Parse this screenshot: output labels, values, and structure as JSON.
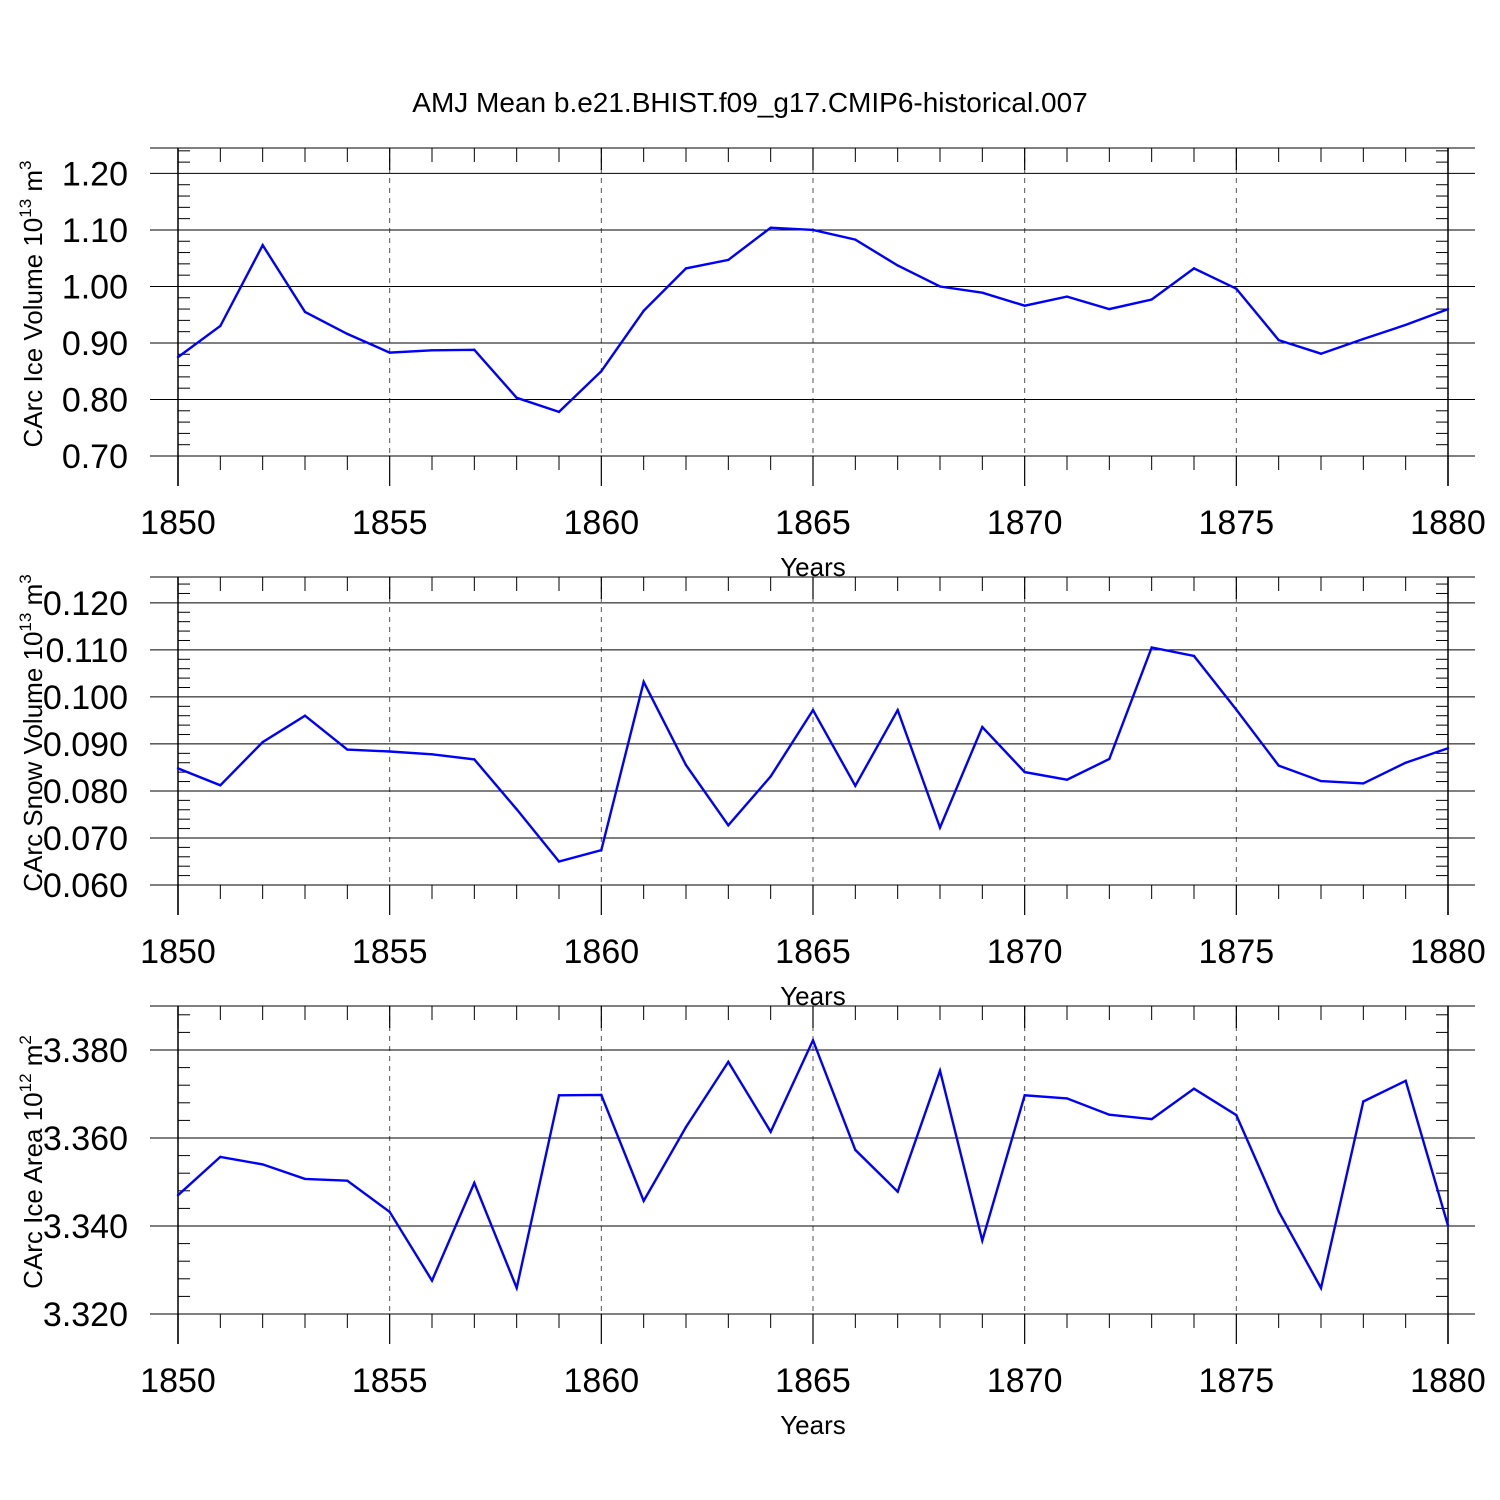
{
  "figure_title": "AMJ Mean b.e21.BHIST.f09_g17.CMIP6-historical.007",
  "colors": {
    "line": "#0000ff",
    "axis": "#000000",
    "grid": "#555555"
  },
  "chart_data": [
    {
      "type": "line",
      "ylabel_main": "CArc Ice Volume 10",
      "ylabel_exp": "13",
      "ylabel_unit": " m",
      "ylabel_unit_exp": "3",
      "xlabel": "Years",
      "xlim": [
        1850,
        1880
      ],
      "ylim": [
        0.7,
        1.245
      ],
      "yticks": [
        0.7,
        0.8,
        0.9,
        1.0,
        1.1,
        1.2
      ],
      "ytick_labels": [
        "0.70",
        "0.80",
        "0.90",
        "1.00",
        "1.10",
        "1.20"
      ],
      "yminor_step": 0.02,
      "xticks": [
        1850,
        1855,
        1860,
        1865,
        1870,
        1875,
        1880
      ],
      "xtick_labels": [
        "1850",
        "1855",
        "1860",
        "1865",
        "1870",
        "1875",
        "1880"
      ],
      "x": [
        1850,
        1851,
        1852,
        1853,
        1854,
        1855,
        1856,
        1857,
        1858,
        1859,
        1860,
        1861,
        1862,
        1863,
        1864,
        1865,
        1866,
        1867,
        1868,
        1869,
        1870,
        1871,
        1872,
        1873,
        1874,
        1875,
        1876,
        1877,
        1878,
        1879,
        1880
      ],
      "y": [
        0.875,
        0.93,
        1.073,
        0.955,
        0.916,
        0.883,
        0.887,
        0.888,
        0.803,
        0.778,
        0.85,
        0.957,
        1.032,
        1.047,
        1.104,
        1.1,
        1.083,
        1.037,
        1.0,
        0.989,
        0.966,
        0.982,
        0.96,
        0.977,
        1.032,
        0.996,
        0.905,
        0.881,
        0.907,
        0.932,
        0.96
      ]
    },
    {
      "type": "line",
      "ylabel_main": "CArc Snow Volume 10",
      "ylabel_exp": "13",
      "ylabel_unit": " m",
      "ylabel_unit_exp": "3",
      "xlabel": "Years",
      "xlim": [
        1850,
        1880
      ],
      "ylim": [
        0.06,
        0.1255
      ],
      "yticks": [
        0.06,
        0.07,
        0.08,
        0.09,
        0.1,
        0.11,
        0.12
      ],
      "ytick_labels": [
        "0.060",
        "0.070",
        "0.080",
        "0.090",
        "0.100",
        "0.110",
        "0.120"
      ],
      "yminor_step": 0.002,
      "xticks": [
        1850,
        1855,
        1860,
        1865,
        1870,
        1875,
        1880
      ],
      "xtick_labels": [
        "1850",
        "1855",
        "1860",
        "1865",
        "1870",
        "1875",
        "1880"
      ],
      "x": [
        1850,
        1851,
        1852,
        1853,
        1854,
        1855,
        1856,
        1857,
        1858,
        1859,
        1860,
        1861,
        1862,
        1863,
        1864,
        1865,
        1866,
        1867,
        1868,
        1869,
        1870,
        1871,
        1872,
        1873,
        1874,
        1875,
        1876,
        1877,
        1878,
        1879,
        1880
      ],
      "y": [
        0.0848,
        0.0812,
        0.0904,
        0.096,
        0.0888,
        0.0884,
        0.0878,
        0.0867,
        0.0761,
        0.065,
        0.0674,
        0.1032,
        0.0855,
        0.0727,
        0.0831,
        0.0972,
        0.0811,
        0.0972,
        0.0722,
        0.0936,
        0.084,
        0.0824,
        0.0868,
        0.1105,
        0.1087,
        0.0973,
        0.0854,
        0.0821,
        0.0816,
        0.086,
        0.0891
      ]
    },
    {
      "type": "line",
      "ylabel_main": "CArc Ice Area 10",
      "ylabel_exp": "12",
      "ylabel_unit": " m",
      "ylabel_unit_exp": "2",
      "xlabel": "Years",
      "xlim": [
        1850,
        1880
      ],
      "ylim": [
        3.32,
        3.39
      ],
      "yticks": [
        3.32,
        3.34,
        3.36,
        3.38
      ],
      "ytick_labels": [
        "3.320",
        "3.340",
        "3.360",
        "3.380"
      ],
      "yminor_step": 0.004,
      "xticks": [
        1850,
        1855,
        1860,
        1865,
        1870,
        1875,
        1880
      ],
      "xtick_labels": [
        "1850",
        "1855",
        "1860",
        "1865",
        "1870",
        "1875",
        "1880"
      ],
      "x": [
        1850,
        1851,
        1852,
        1853,
        1854,
        1855,
        1856,
        1857,
        1858,
        1859,
        1860,
        1861,
        1862,
        1863,
        1864,
        1865,
        1866,
        1867,
        1868,
        1869,
        1870,
        1871,
        1872,
        1873,
        1874,
        1875,
        1876,
        1877,
        1878,
        1879,
        1880
      ],
      "y": [
        3.347,
        3.3557,
        3.354,
        3.3507,
        3.3503,
        3.3432,
        3.3276,
        3.3498,
        3.3259,
        3.3697,
        3.3698,
        3.3457,
        3.3625,
        3.3773,
        3.3614,
        3.3822,
        3.3573,
        3.3478,
        3.3753,
        3.3367,
        3.3697,
        3.369,
        3.3653,
        3.3643,
        3.3712,
        3.3652,
        3.3433,
        3.3259,
        3.3683,
        3.373,
        3.3401
      ]
    }
  ]
}
